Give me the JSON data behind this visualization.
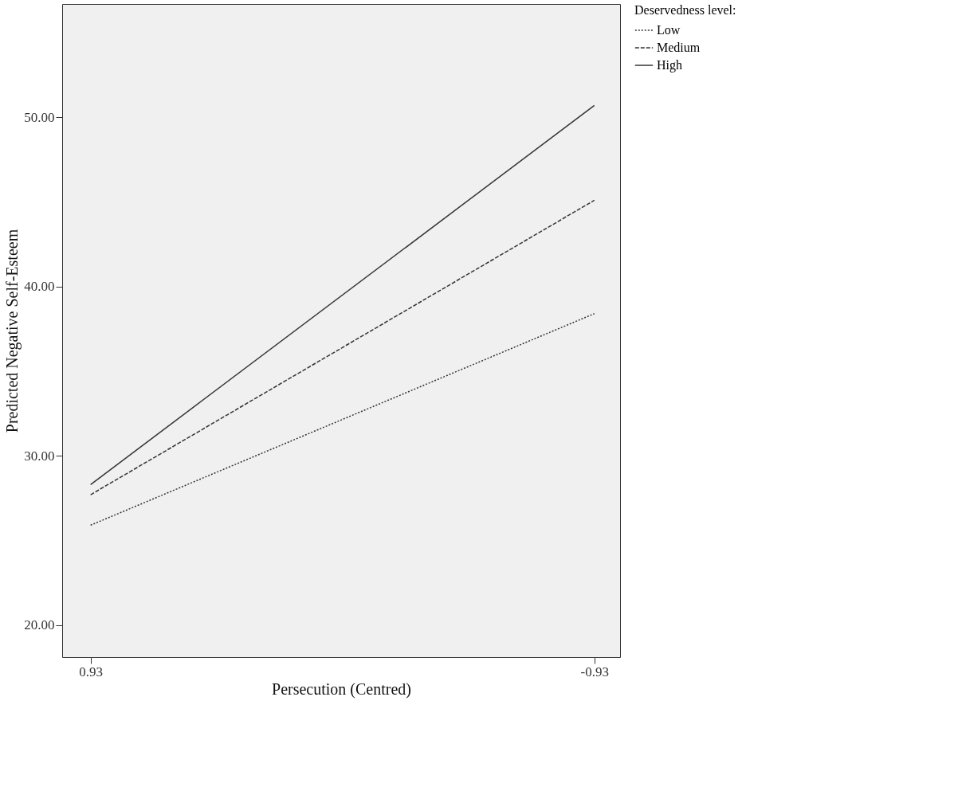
{
  "chart_data": {
    "type": "line",
    "xlabel": "Persecution (Centred)",
    "ylabel": "Predicted Negative Self-Esteem",
    "legend_title": "Deservedness level:",
    "x": [
      0.93,
      -0.93
    ],
    "series": [
      {
        "name": "Low",
        "color": "#333333",
        "line_style": "dotted",
        "values": [
          25.9,
          38.4
        ]
      },
      {
        "name": "Medium",
        "color": "#333333",
        "line_style": "dashed",
        "values": [
          27.7,
          45.1
        ]
      },
      {
        "name": "High",
        "color": "#333333",
        "line_style": "solid",
        "values": [
          28.3,
          50.7
        ]
      }
    ],
    "xlim": [
      1.035,
      -1.025
    ],
    "xticks": [
      0.93,
      -0.93
    ],
    "ylim": [
      18.1,
      56.7
    ],
    "yticks": [
      {
        "value": 20,
        "label": "20.00"
      },
      {
        "value": 30,
        "label": "30.00"
      },
      {
        "value": 40,
        "label": "40.00"
      },
      {
        "value": 50,
        "label": "50.00"
      }
    ],
    "grid": false,
    "legend": "top right",
    "marker": "none"
  }
}
